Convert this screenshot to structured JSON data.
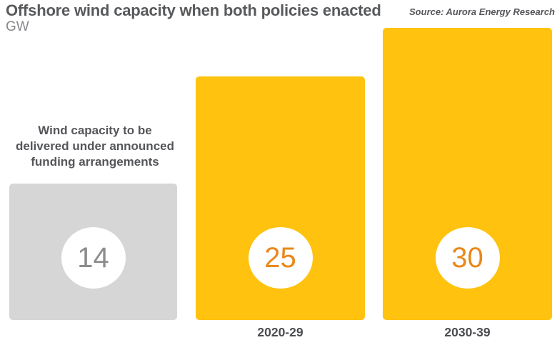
{
  "header": {
    "title": "Offshore wind capacity when both policies enacted",
    "unit_label": "GW",
    "source": "Source: Aurora Energy Research"
  },
  "annotation": {
    "text": "Wind capacity to be delivered under announced funding arrangements",
    "lines": [
      "Wind capacity to be",
      "delivered under announced",
      "funding arrangements"
    ]
  },
  "colors": {
    "bar_yellow": "#FFC20E",
    "bar_gray": "#D6D6D6",
    "badge_white": "#FFFFFF",
    "value_gray": "#8A8C8E",
    "value_orange": "#E8891C",
    "title_gray": "#58595B"
  },
  "chart_data": {
    "type": "bar",
    "categories": [
      "announced-funding",
      "2020-29",
      "2030-39"
    ],
    "values": [
      14,
      25,
      30
    ],
    "x_tick_labels": [
      "",
      "2020-29",
      "2030-39"
    ],
    "bar_colors": [
      "#D6D6D6",
      "#FFC20E",
      "#FFC20E"
    ],
    "value_label_colors": [
      "#8A8C8E",
      "#E8891C",
      "#E8891C"
    ],
    "title": "Offshore wind capacity when both policies enacted",
    "xlabel": "",
    "ylabel": "GW",
    "ylim": [
      0,
      33
    ],
    "grid": false,
    "legend": false,
    "annotation": "Wind capacity to be delivered under announced funding arrangements"
  }
}
